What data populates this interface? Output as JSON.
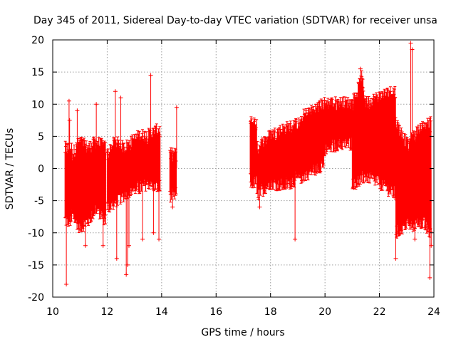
{
  "chart_data": {
    "type": "scatter",
    "title": "Day 345 of 2011, Sidereal Day-to-day VTEC variation (SDTVAR) for receiver unsa",
    "xlabel": "GPS time / hours",
    "ylabel": "SDTVAR / TECUs",
    "xlim": [
      10,
      24
    ],
    "ylim": [
      -20,
      20
    ],
    "xticks": [
      10,
      12,
      14,
      16,
      18,
      20,
      22,
      24
    ],
    "xtick_labels": [
      "10",
      "12",
      "14",
      "16",
      "18",
      "20",
      "22",
      "24"
    ],
    "yticks": [
      -20,
      -15,
      -10,
      -5,
      0,
      5,
      10,
      15,
      20
    ],
    "ytick_labels": [
      "-20",
      "-15",
      "-10",
      "-5",
      "0",
      "5",
      "10",
      "15",
      "20"
    ],
    "grid": true,
    "marker": "+",
    "color": "#ff0000",
    "series": [
      {
        "name": "SDTVAR",
        "segments": [
          {
            "x_start": 10.45,
            "x_end": 10.7,
            "lower": [
              [
                10.45,
                -8
              ],
              [
                10.7,
                -8
              ]
            ],
            "upper": [
              [
                10.45,
                3
              ],
              [
                10.7,
                3
              ]
            ]
          },
          {
            "x_start": 10.7,
            "x_end": 11.95,
            "lower": [
              [
                10.7,
                -7
              ],
              [
                11.0,
                -9
              ],
              [
                11.3,
                -8
              ],
              [
                11.6,
                -6
              ],
              [
                11.95,
                -8
              ]
            ],
            "upper": [
              [
                10.7,
                2
              ],
              [
                11.0,
                4
              ],
              [
                11.3,
                3
              ],
              [
                11.6,
                4
              ],
              [
                11.95,
                3
              ]
            ]
          },
          {
            "x_start": 12.0,
            "x_end": 13.95,
            "lower": [
              [
                12.0,
                -6
              ],
              [
                12.3,
                -5
              ],
              [
                12.6,
                -4
              ],
              [
                12.9,
                -3
              ],
              [
                13.2,
                -3
              ],
              [
                13.5,
                -2
              ],
              [
                13.95,
                -3
              ]
            ],
            "upper": [
              [
                12.0,
                2
              ],
              [
                12.3,
                4
              ],
              [
                12.6,
                3
              ],
              [
                12.9,
                4
              ],
              [
                13.2,
                5
              ],
              [
                13.5,
                5
              ],
              [
                13.95,
                6
              ]
            ]
          },
          {
            "x_start": 14.3,
            "x_end": 14.55,
            "lower": [
              [
                14.3,
                -4
              ],
              [
                14.55,
                -4
              ]
            ],
            "upper": [
              [
                14.3,
                2
              ],
              [
                14.55,
                2
              ]
            ]
          },
          {
            "x_start": 17.25,
            "x_end": 17.5,
            "lower": [
              [
                17.25,
                -2
              ],
              [
                17.5,
                -2
              ]
            ],
            "upper": [
              [
                17.25,
                7
              ],
              [
                17.5,
                7
              ]
            ]
          },
          {
            "x_start": 17.5,
            "x_end": 19.2,
            "lower": [
              [
                17.5,
                -4
              ],
              [
                18.0,
                -2
              ],
              [
                18.5,
                -2.5
              ],
              [
                19.2,
                -1
              ]
            ],
            "upper": [
              [
                17.5,
                3
              ],
              [
                18.0,
                5
              ],
              [
                18.5,
                6
              ],
              [
                19.2,
                7
              ]
            ]
          },
          {
            "x_start": 19.2,
            "x_end": 20.0,
            "lower": [
              [
                19.2,
                -1
              ],
              [
                19.6,
                0
              ],
              [
                20.0,
                1
              ]
            ],
            "upper": [
              [
                19.2,
                8
              ],
              [
                19.6,
                9
              ],
              [
                20.0,
                10
              ]
            ]
          },
          {
            "x_start": 20.0,
            "x_end": 21.0,
            "lower": [
              [
                20.0,
                3
              ],
              [
                20.5,
                4
              ],
              [
                21.0,
                4
              ]
            ],
            "upper": [
              [
                20.0,
                10
              ],
              [
                20.5,
                10
              ],
              [
                21.0,
                10
              ]
            ]
          },
          {
            "x_start": 21.0,
            "x_end": 21.5,
            "lower": [
              [
                21.0,
                -2
              ],
              [
                21.2,
                -2
              ],
              [
                21.5,
                -1
              ]
            ],
            "upper": [
              [
                21.0,
                10
              ],
              [
                21.2,
                12
              ],
              [
                21.35,
                14
              ],
              [
                21.5,
                10
              ]
            ]
          },
          {
            "x_start": 21.5,
            "x_end": 22.6,
            "lower": [
              [
                21.5,
                -1
              ],
              [
                22.0,
                -2
              ],
              [
                22.6,
                -4
              ]
            ],
            "upper": [
              [
                21.5,
                10
              ],
              [
                22.0,
                11
              ],
              [
                22.6,
                12
              ]
            ]
          },
          {
            "x_start": 22.6,
            "x_end": 23.1,
            "lower": [
              [
                22.6,
                -10
              ],
              [
                23.1,
                -8
              ]
            ],
            "upper": [
              [
                22.6,
                7
              ],
              [
                23.1,
                3
              ]
            ]
          },
          {
            "x_start": 23.1,
            "x_end": 23.9,
            "lower": [
              [
                23.1,
                -9
              ],
              [
                23.5,
                -8
              ],
              [
                23.9,
                -10
              ]
            ],
            "upper": [
              [
                23.1,
                4
              ],
              [
                23.5,
                6
              ],
              [
                23.9,
                7
              ]
            ]
          }
        ],
        "outliers": [
          [
            10.5,
            -18
          ],
          [
            10.6,
            10.5
          ],
          [
            10.62,
            7.5
          ],
          [
            10.9,
            9
          ],
          [
            11.2,
            -12
          ],
          [
            11.6,
            10
          ],
          [
            11.85,
            -12
          ],
          [
            12.35,
            -14
          ],
          [
            12.7,
            -16.5
          ],
          [
            12.75,
            -15
          ],
          [
            12.8,
            -12
          ],
          [
            12.3,
            12
          ],
          [
            12.5,
            11
          ],
          [
            13.3,
            -11
          ],
          [
            13.6,
            14.5
          ],
          [
            13.7,
            -10
          ],
          [
            13.9,
            -11
          ],
          [
            14.4,
            -6
          ],
          [
            14.55,
            9.5
          ],
          [
            17.6,
            -6
          ],
          [
            18.9,
            -11
          ],
          [
            19.3,
            9
          ],
          [
            21.05,
            -3
          ],
          [
            21.3,
            15.5
          ],
          [
            22.6,
            -14
          ],
          [
            23.15,
            19.5
          ],
          [
            23.2,
            18.5
          ],
          [
            23.3,
            -11
          ],
          [
            23.85,
            -17
          ],
          [
            23.9,
            -12
          ]
        ]
      }
    ]
  }
}
